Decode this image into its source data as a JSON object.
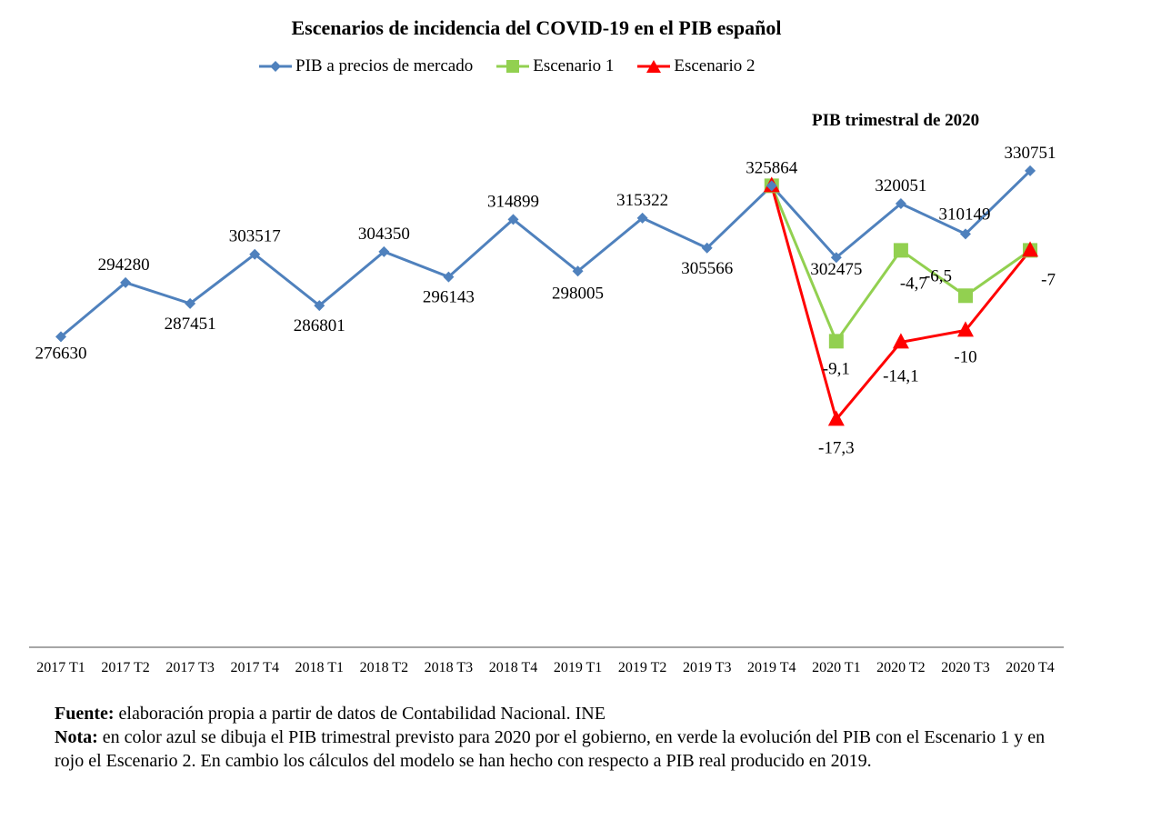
{
  "chart_data": {
    "type": "line",
    "title": "Escenarios de incidencia del COVID-19 en el PIB español",
    "subtitle": "PIB trimestral de 2020",
    "categories": [
      "2017 T1",
      "2017 T2",
      "2017 T3",
      "2017 T4",
      "2018 T1",
      "2018 T2",
      "2018 T3",
      "2018 T4",
      "2019 T1",
      "2019 T2",
      "2019 T3",
      "2019 T4",
      "2020 T1",
      "2020 T2",
      "2020 T3",
      "2020 T4"
    ],
    "ylim": [
      175000,
      350000
    ],
    "grid": false,
    "legend_placement": "top",
    "series": [
      {
        "name": "PIB a precios de mercado",
        "color": "#4F81BD",
        "marker": "diamond",
        "values": [
          276630,
          294280,
          287451,
          303517,
          286801,
          304350,
          296143,
          314899,
          298005,
          315322,
          305566,
          325864,
          302475,
          320051,
          310149,
          330751
        ],
        "labels": [
          "276630",
          "294280",
          "287451",
          "303517",
          "286801",
          "304350",
          "296143",
          "314899",
          "298005",
          "315322",
          "305566",
          "325864",
          "302475",
          "320051",
          "310149",
          "330751"
        ]
      },
      {
        "name": "Escenario 1",
        "color": "#92D050",
        "marker": "square",
        "values": [
          null,
          null,
          null,
          null,
          null,
          null,
          null,
          null,
          null,
          null,
          null,
          325864,
          275150,
          304800,
          290000,
          304800
        ],
        "labels": [
          null,
          null,
          null,
          null,
          null,
          null,
          null,
          null,
          null,
          null,
          null,
          null,
          "-9,1",
          "-4,7",
          "-6,5",
          null
        ]
      },
      {
        "name": "Escenario 2",
        "color": "#FF0000",
        "marker": "triangle",
        "values": [
          null,
          null,
          null,
          null,
          null,
          null,
          null,
          null,
          null,
          null,
          null,
          325864,
          249640,
          274850,
          278700,
          304800
        ],
        "labels": [
          null,
          null,
          null,
          null,
          null,
          null,
          null,
          null,
          null,
          null,
          null,
          null,
          "-17,3",
          "-14,1",
          "-10",
          "-7"
        ]
      }
    ]
  },
  "notes": {
    "source_label": "Fuente:",
    "source_text": " elaboración propia a partir de datos de Contabilidad Nacional. INE",
    "note_label": "Nota:",
    "note_text": " en color azul se dibuja el PIB trimestral previsto para 2020 por el gobierno, en verde la evolución del PIB con el Escenario 1 y en rojo el Escenario 2. En cambio los cálculos del modelo se han hecho con respecto a PIB real producido en 2019."
  }
}
